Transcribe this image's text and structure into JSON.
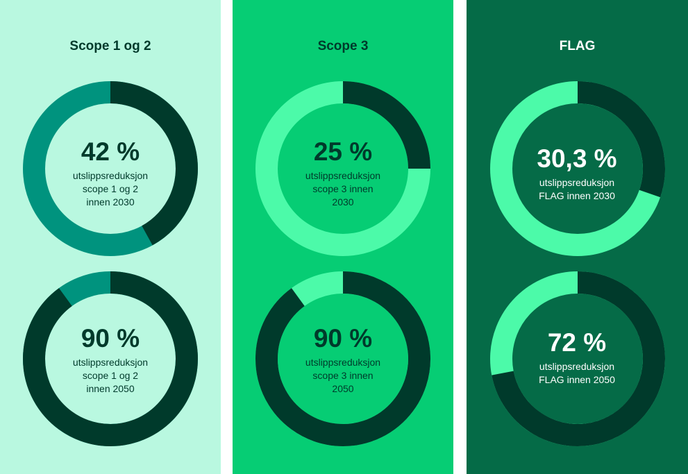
{
  "colors": {
    "panel_bg": [
      "#b9f8e0",
      "#06cd74",
      "#056b47"
    ],
    "ring_fill": [
      "#00937e",
      "#4cfaa9",
      "#4cfaa9"
    ],
    "ring_dark": "#003a2b",
    "text": [
      "#003a2b",
      "#003a2b",
      "#ffffff"
    ]
  },
  "chart_data": {
    "type": "pie",
    "variant": "donut",
    "panels": [
      {
        "title": "Scope 1 og 2",
        "donuts": [
          {
            "value": 42,
            "label": "42 %",
            "lines": [
              "utslippsreduksjon",
              "scope 1 og 2",
              "innen 2030"
            ]
          },
          {
            "value": 90,
            "label": "90 %",
            "lines": [
              "utslippsreduksjon",
              "scope 1 og 2",
              "innen 2050"
            ]
          }
        ]
      },
      {
        "title": "Scope 3",
        "donuts": [
          {
            "value": 25,
            "label": "25 %",
            "lines": [
              "utslippsreduksjon",
              "scope 3 innen",
              "2030"
            ]
          },
          {
            "value": 90,
            "label": "90 %",
            "lines": [
              "utslippsreduksjon",
              "scope 3 innen",
              "2050"
            ]
          }
        ]
      },
      {
        "title": "FLAG",
        "donuts": [
          {
            "value": 30.3,
            "label": "30,3 %",
            "lines": [
              "utslippsreduksjon",
              "FLAG innen 2030"
            ]
          },
          {
            "value": 72,
            "label": "72 %",
            "lines": [
              "utslippsreduksjon",
              "FLAG innen 2050"
            ]
          }
        ]
      }
    ]
  }
}
